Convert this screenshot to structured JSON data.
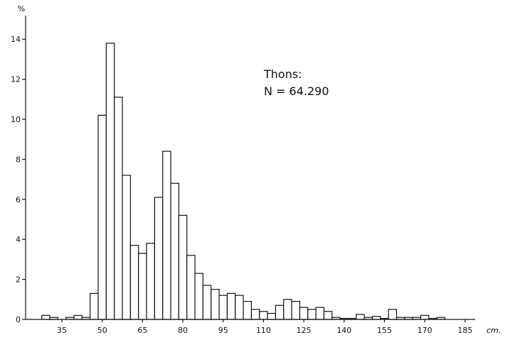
{
  "chart_data": {
    "type": "bar",
    "ylabel": "%",
    "xunit": "cm.",
    "annotation": [
      "Thons:",
      "N = 64.290"
    ],
    "xticks": [
      35,
      50,
      65,
      80,
      95,
      110,
      125,
      140,
      155,
      170,
      185
    ],
    "yticks": [
      0,
      2,
      4,
      6,
      8,
      10,
      12,
      14
    ],
    "xlim": [
      21.5,
      189
    ],
    "ylim": [
      0,
      15
    ],
    "bin_width": 3,
    "grid": false,
    "x": [
      29,
      32,
      35,
      38,
      41,
      44,
      47,
      50,
      53,
      56,
      59,
      62,
      65,
      68,
      71,
      74,
      77,
      80,
      83,
      86,
      89,
      92,
      95,
      98,
      101,
      104,
      107,
      110,
      113,
      116,
      119,
      122,
      125,
      128,
      131,
      134,
      137,
      140,
      143,
      146,
      149,
      152,
      155,
      158,
      161,
      164,
      167,
      170,
      173,
      176
    ],
    "values": [
      0.2,
      0.1,
      0.0,
      0.1,
      0.2,
      0.1,
      1.3,
      10.2,
      13.8,
      11.1,
      7.2,
      3.7,
      3.3,
      3.8,
      6.1,
      8.4,
      6.8,
      5.2,
      3.2,
      2.3,
      1.7,
      1.5,
      1.2,
      1.3,
      1.2,
      0.9,
      0.5,
      0.4,
      0.3,
      0.7,
      1.0,
      0.9,
      0.6,
      0.5,
      0.6,
      0.4,
      0.1,
      0.05,
      0.05,
      0.25,
      0.1,
      0.15,
      0.05,
      0.5,
      0.1,
      0.1,
      0.1,
      0.2,
      0.05,
      0.1
    ]
  }
}
